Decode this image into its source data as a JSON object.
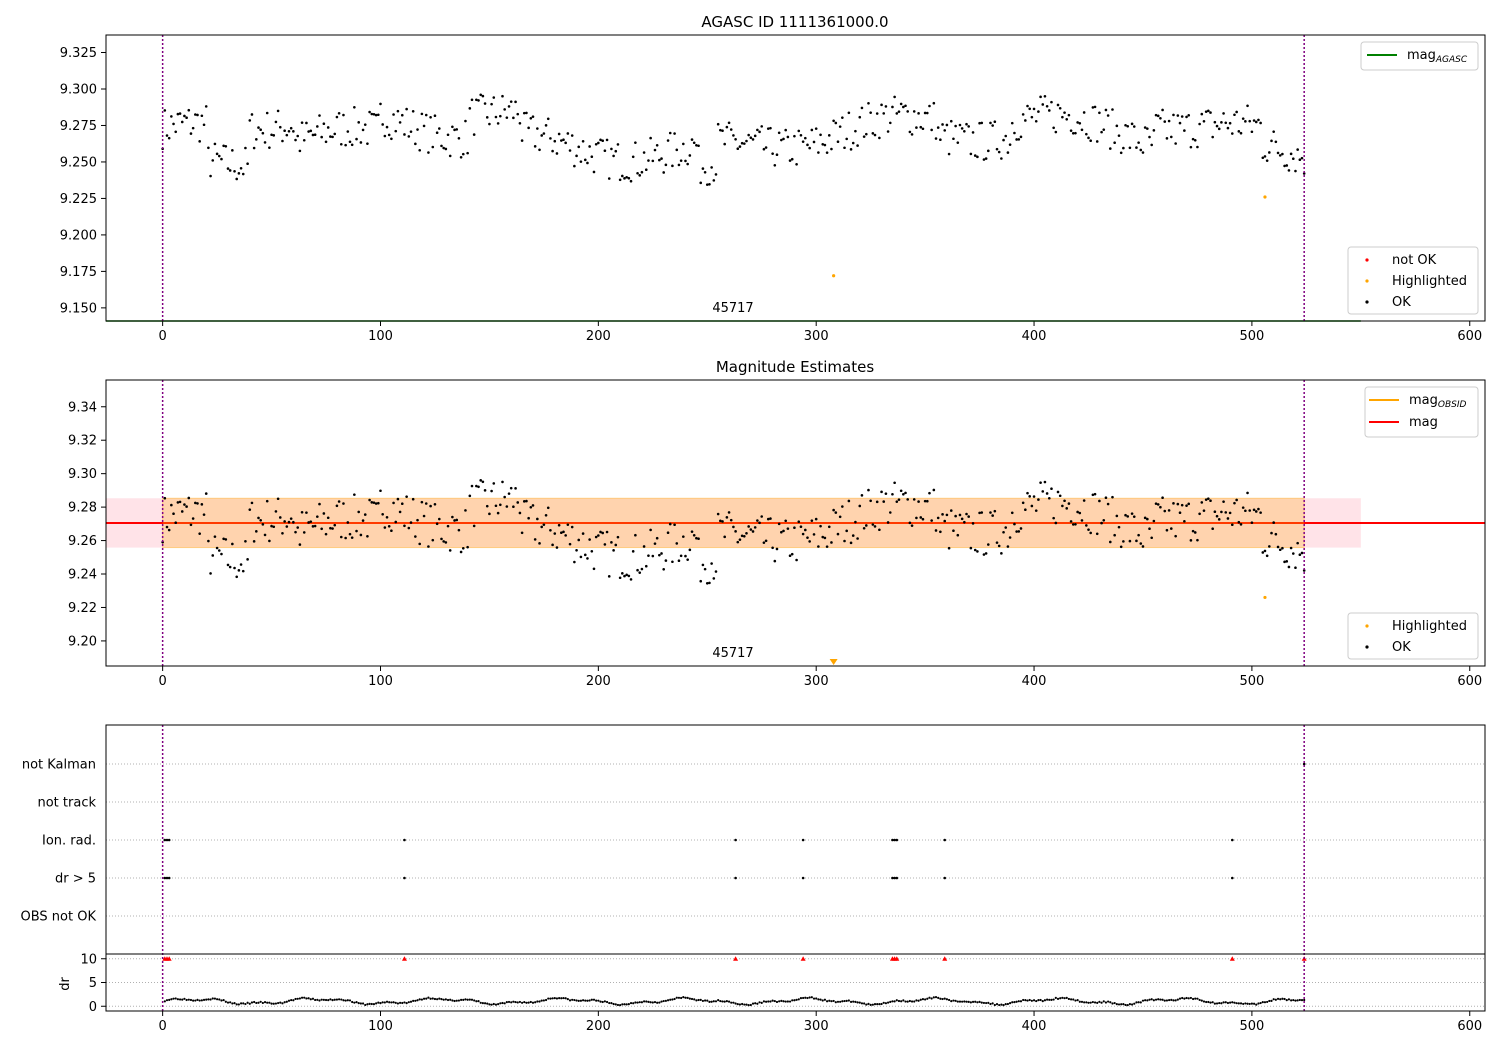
{
  "chart_data": [
    {
      "type": "scatter",
      "title": "AGASC ID 1111361000.0",
      "xlim": [
        -26,
        607
      ],
      "ylim": [
        9.141,
        9.337
      ],
      "xticks": [
        "0",
        "100",
        "200",
        "300",
        "400",
        "500",
        "600"
      ],
      "yticks": [
        "9.150",
        "9.175",
        "9.200",
        "9.225",
        "9.250",
        "9.275",
        "9.300",
        "9.325"
      ],
      "obsid_label": "45717",
      "obsid_bounds": [
        0,
        524
      ],
      "line_legend": {
        "name": "mag",
        "subscript": "AGASC",
        "color": "#008000",
        "value": 9.141
      },
      "point_legend": [
        {
          "name": "not OK",
          "color": "#ff0000"
        },
        {
          "name": "Highlighted",
          "color": "#ffa500"
        },
        {
          "name": "OK",
          "color": "#000000"
        }
      ],
      "highlighted_points": [
        [
          308,
          9.172
        ],
        [
          506,
          9.226
        ]
      ]
    },
    {
      "type": "scatter",
      "title": "Magnitude Estimates",
      "xlim": [
        -26,
        607
      ],
      "ylim": [
        9.185,
        9.356
      ],
      "xticks": [
        "0",
        "100",
        "200",
        "300",
        "400",
        "500",
        "600"
      ],
      "yticks": [
        "9.20",
        "9.22",
        "9.24",
        "9.26",
        "9.28",
        "9.30",
        "9.32",
        "9.34"
      ],
      "obsid_label": "45717",
      "obsid_bounds": [
        0,
        524
      ],
      "mean_mag": 9.2705,
      "band_outer": [
        9.2558,
        9.2853
      ],
      "band_inner": [
        9.2558,
        9.2853
      ],
      "line_legend": [
        {
          "name": "mag",
          "subscript": "OBSID",
          "color": "#ffa500"
        },
        {
          "name": "mag",
          "color": "#ff0000"
        }
      ],
      "point_legend": [
        {
          "name": "Highlighted",
          "color": "#ffa500"
        },
        {
          "name": "OK",
          "color": "#000000"
        }
      ],
      "highlighted_points": [
        [
          506,
          9.226
        ]
      ],
      "offscale_marker": [
        308,
        "below"
      ]
    },
    {
      "type": "scatter",
      "xlim": [
        -26,
        607
      ],
      "xticks": [
        "0",
        "100",
        "200",
        "300",
        "400",
        "500",
        "600"
      ],
      "flag_rows": [
        "not Kalman",
        "not track",
        "Ion. rad.",
        "dr > 5",
        "OBS not OK"
      ],
      "flag_points": {
        "not Kalman": [
          524
        ],
        "Ion. rad.": [
          1,
          2,
          3,
          111,
          263,
          294,
          335,
          336,
          337,
          359,
          491
        ],
        "dr > 5": [
          1,
          2,
          3,
          111,
          263,
          294,
          335,
          336,
          337,
          359,
          491
        ]
      },
      "dr_ylabel": "dr",
      "dr_yticks": [
        "0",
        "5",
        "10"
      ],
      "dr_ylim": [
        -1,
        11
      ],
      "dr_threshold_markers": [
        1,
        2,
        3,
        111,
        263,
        294,
        335,
        336,
        337,
        359,
        491,
        524
      ]
    }
  ]
}
